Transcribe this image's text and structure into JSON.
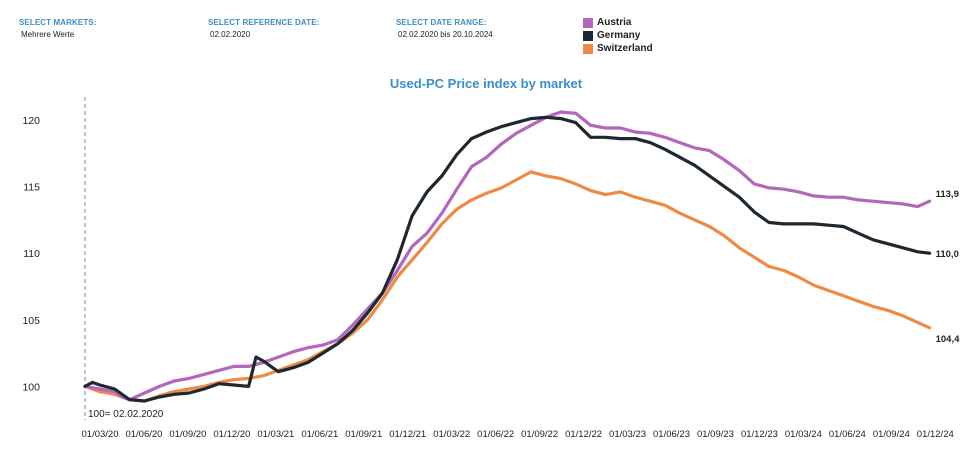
{
  "filters": {
    "markets": {
      "label": "SELECT MARKETS:",
      "value": "Mehrere Werte"
    },
    "reference_date": {
      "label": "SELECT REFERENCE DATE:",
      "value": "02.02.2020"
    },
    "date_range": {
      "label": "SELECT DATE RANGE:",
      "value": "02.02.2020 bis 20.10.2024"
    }
  },
  "colors": {
    "Austria": "#b466bc",
    "Germany": "#1e2830",
    "Switzerland": "#ee8a44",
    "title": "#3a8fc9"
  },
  "chart_data": {
    "type": "line",
    "title": "Used-PC Price index by market",
    "xlabel": "",
    "ylabel": "",
    "ylim": [
      98.6,
      121.5
    ],
    "yticks": [
      "100",
      "105",
      "110",
      "115",
      "120"
    ],
    "xlim": [
      0,
      57.7
    ],
    "xticks": [
      "01/03/20",
      "01/06/20",
      "01/09/20",
      "01/12/20",
      "01/03/21",
      "01/06/21",
      "01/09/21",
      "01/12/21",
      "01/03/22",
      "01/06/22",
      "01/09/22",
      "01/12/22",
      "01/03/23",
      "01/06/23",
      "01/09/23",
      "01/12/23",
      "01/03/24",
      "01/06/24",
      "01/09/24",
      "01/12/24"
    ],
    "reference": {
      "x": 0,
      "label": "100= 02.02.2020"
    },
    "legend": [
      "Austria",
      "Germany",
      "Switzerland"
    ],
    "series": [
      {
        "name": "Austria",
        "end_label": "113,9",
        "x": [
          0,
          1,
          2,
          2.5,
          3,
          4,
          5,
          6,
          7,
          8,
          9,
          10,
          11,
          12,
          13,
          14,
          15,
          16,
          17,
          18,
          19,
          20,
          21,
          22,
          23,
          24,
          25,
          26,
          27,
          28,
          29,
          30,
          31,
          32,
          33,
          34,
          35,
          36,
          37,
          38,
          39,
          40,
          41,
          42,
          43,
          44,
          45,
          46,
          47,
          48,
          49,
          50,
          51,
          52,
          53,
          54,
          55,
          56,
          56.8
        ],
        "y": [
          100,
          99.8,
          99.6,
          99.2,
          99.0,
          99.5,
          100.0,
          100.4,
          100.6,
          100.9,
          101.2,
          101.5,
          101.5,
          101.8,
          102.2,
          102.6,
          102.9,
          103.1,
          103.5,
          104.6,
          105.8,
          107.0,
          108.7,
          110.5,
          111.5,
          113.0,
          114.8,
          116.5,
          117.2,
          118.2,
          119.0,
          119.6,
          120.2,
          120.6,
          120.5,
          119.6,
          119.4,
          119.4,
          119.1,
          119.0,
          118.7,
          118.3,
          117.9,
          117.7,
          117.0,
          116.2,
          115.2,
          114.9,
          114.8,
          114.6,
          114.3,
          114.2,
          114.2,
          114.0,
          113.9,
          113.8,
          113.7,
          113.5,
          113.9
        ]
      },
      {
        "name": "Germany",
        "end_label": "110,0",
        "x": [
          0,
          0.5,
          1,
          2,
          3,
          4,
          5,
          6,
          7,
          8,
          9,
          10,
          11,
          11.5,
          12,
          12.5,
          13,
          14,
          15,
          16,
          17,
          18,
          19,
          20,
          21,
          22,
          23,
          24,
          25,
          26,
          27,
          28,
          29,
          30,
          31,
          32,
          33,
          34,
          35,
          36,
          37,
          38,
          39,
          40,
          41,
          42,
          43,
          44,
          45,
          46,
          47,
          48,
          49,
          50,
          51,
          52,
          53,
          54,
          55,
          56,
          56.8
        ],
        "y": [
          100,
          100.3,
          100.1,
          99.8,
          99.0,
          98.9,
          99.2,
          99.4,
          99.5,
          99.8,
          100.2,
          100.1,
          100.0,
          102.2,
          101.9,
          101.5,
          101.1,
          101.4,
          101.8,
          102.5,
          103.2,
          104.2,
          105.5,
          107.0,
          109.5,
          112.8,
          114.6,
          115.8,
          117.4,
          118.6,
          119.1,
          119.5,
          119.8,
          120.1,
          120.2,
          120.1,
          119.8,
          118.7,
          118.7,
          118.6,
          118.6,
          118.3,
          117.8,
          117.2,
          116.6,
          115.8,
          115.0,
          114.2,
          113.1,
          112.3,
          112.2,
          112.2,
          112.2,
          112.1,
          112.0,
          111.5,
          111.0,
          110.7,
          110.4,
          110.1,
          110.0
        ]
      },
      {
        "name": "Switzerland",
        "end_label": "104,4",
        "x": [
          0,
          1,
          2,
          3,
          4,
          5,
          6,
          7,
          8,
          9,
          10,
          11,
          12,
          13,
          14,
          15,
          16,
          17,
          18,
          19,
          20,
          21,
          22,
          23,
          24,
          25,
          26,
          27,
          28,
          29,
          30,
          31,
          32,
          33,
          34,
          35,
          36,
          37,
          38,
          39,
          40,
          41,
          42,
          43,
          44,
          45,
          46,
          47,
          48,
          49,
          50,
          51,
          52,
          53,
          54,
          55,
          56,
          56.8
        ],
        "y": [
          100,
          99.6,
          99.4,
          99.0,
          98.9,
          99.3,
          99.6,
          99.8,
          100.0,
          100.3,
          100.5,
          100.6,
          100.8,
          101.2,
          101.6,
          102.0,
          102.6,
          103.2,
          104.0,
          105.0,
          106.5,
          108.2,
          109.5,
          110.8,
          112.2,
          113.3,
          114.0,
          114.5,
          114.9,
          115.5,
          116.1,
          115.8,
          115.6,
          115.2,
          114.7,
          114.4,
          114.6,
          114.2,
          113.9,
          113.6,
          113.0,
          112.5,
          112.0,
          111.3,
          110.4,
          109.7,
          109.0,
          108.7,
          108.2,
          107.6,
          107.2,
          106.8,
          106.4,
          106.0,
          105.7,
          105.3,
          104.8,
          104.4
        ]
      }
    ]
  }
}
